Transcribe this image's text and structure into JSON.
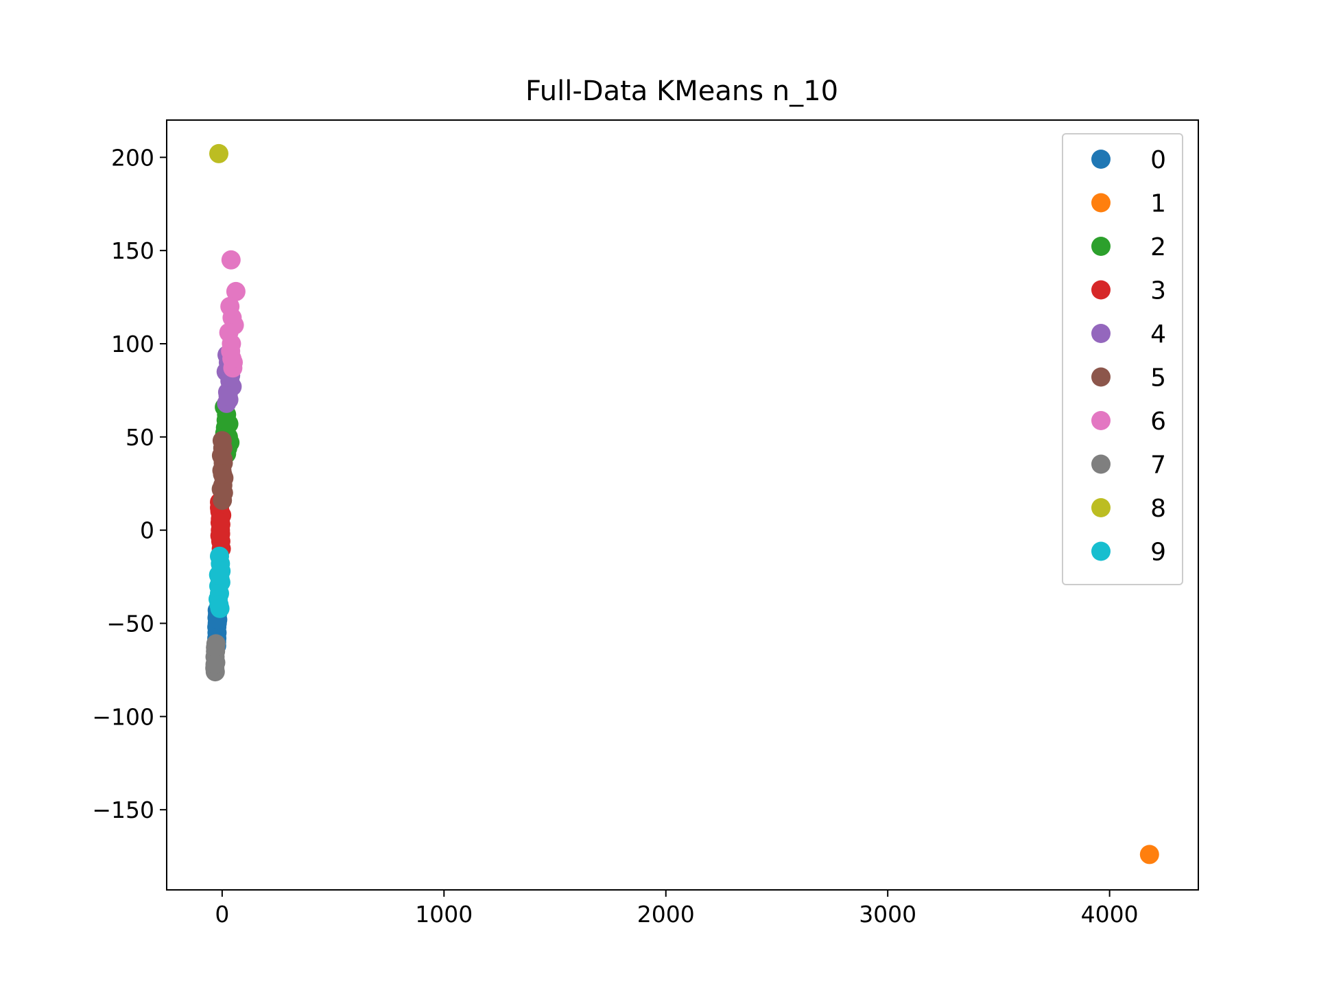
{
  "chart_data": {
    "type": "scatter",
    "title": "Full-Data KMeans n_10",
    "xlabel": "",
    "ylabel": "",
    "xlim": [
      -250,
      4400
    ],
    "ylim": [
      -193,
      220
    ],
    "xticks": [
      0,
      1000,
      2000,
      3000,
      4000
    ],
    "xtick_labels": [
      "0",
      "1000",
      "2000",
      "3000",
      "4000"
    ],
    "yticks": [
      -150,
      -100,
      -50,
      0,
      50,
      100,
      150,
      200
    ],
    "ytick_labels": [
      "−150",
      "−100",
      "−50",
      "0",
      "50",
      "100",
      "150",
      "200"
    ],
    "grid": false,
    "legend_position": "top-right",
    "series": [
      {
        "name": "0",
        "color": "#1f77b4",
        "points": [
          [
            -25,
            -62
          ],
          [
            -24,
            -58
          ],
          [
            -23,
            -55
          ],
          [
            -24,
            -52
          ],
          [
            -22,
            -50
          ],
          [
            -23,
            -47
          ],
          [
            -21,
            -45
          ],
          [
            -22,
            -43
          ],
          [
            -20,
            -48
          ],
          [
            -25,
            -60
          ]
        ]
      },
      {
        "name": "1",
        "color": "#ff7f0e",
        "points": [
          [
            4180,
            -174
          ]
        ]
      },
      {
        "name": "2",
        "color": "#2ca02c",
        "points": [
          [
            10,
            66
          ],
          [
            20,
            62
          ],
          [
            30,
            57
          ],
          [
            15,
            55
          ],
          [
            35,
            47
          ],
          [
            25,
            44
          ],
          [
            20,
            41
          ],
          [
            12,
            52
          ],
          [
            18,
            59
          ],
          [
            28,
            50
          ]
        ]
      },
      {
        "name": "3",
        "color": "#d62728",
        "points": [
          [
            -12,
            15
          ],
          [
            -10,
            10
          ],
          [
            -8,
            6
          ],
          [
            -6,
            3
          ],
          [
            -8,
            0
          ],
          [
            -10,
            -3
          ],
          [
            -6,
            -6
          ],
          [
            -4,
            -10
          ],
          [
            -12,
            12
          ],
          [
            -2,
            8
          ],
          [
            -7,
            -2
          ],
          [
            -9,
            4
          ]
        ]
      },
      {
        "name": "4",
        "color": "#9467bd",
        "points": [
          [
            22,
            94
          ],
          [
            28,
            90
          ],
          [
            18,
            85
          ],
          [
            35,
            80
          ],
          [
            45,
            77
          ],
          [
            25,
            74
          ],
          [
            30,
            70
          ],
          [
            20,
            68
          ],
          [
            38,
            83
          ],
          [
            27,
            72
          ]
        ]
      },
      {
        "name": "5",
        "color": "#8c564b",
        "points": [
          [
            0,
            48
          ],
          [
            3,
            44
          ],
          [
            -3,
            40
          ],
          [
            5,
            36
          ],
          [
            -1,
            32
          ],
          [
            8,
            28
          ],
          [
            3,
            24
          ],
          [
            6,
            20
          ],
          [
            1,
            16
          ],
          [
            -4,
            22
          ],
          [
            4,
            38
          ],
          [
            2,
            30
          ]
        ]
      },
      {
        "name": "6",
        "color": "#e377c2",
        "points": [
          [
            40,
            145
          ],
          [
            62,
            128
          ],
          [
            35,
            120
          ],
          [
            45,
            114
          ],
          [
            55,
            110
          ],
          [
            30,
            106
          ],
          [
            42,
            100
          ],
          [
            38,
            96
          ],
          [
            50,
            90
          ],
          [
            48,
            87
          ],
          [
            44,
            92
          ]
        ]
      },
      {
        "name": "7",
        "color": "#7f7f7f",
        "points": [
          [
            -28,
            -61
          ],
          [
            -30,
            -65
          ],
          [
            -32,
            -68
          ],
          [
            -29,
            -71
          ],
          [
            -33,
            -74
          ],
          [
            -31,
            -76
          ],
          [
            -30,
            -63
          ],
          [
            -32,
            -72
          ]
        ]
      },
      {
        "name": "8",
        "color": "#bcbd22",
        "points": [
          [
            -15,
            202
          ]
        ]
      },
      {
        "name": "9",
        "color": "#17becf",
        "points": [
          [
            -12,
            -14
          ],
          [
            -8,
            -18
          ],
          [
            -5,
            -22
          ],
          [
            -10,
            -26
          ],
          [
            -15,
            -30
          ],
          [
            -12,
            -34
          ],
          [
            -18,
            -37
          ],
          [
            -14,
            -40
          ],
          [
            -10,
            -42
          ],
          [
            -6,
            -28
          ],
          [
            -16,
            -24
          ]
        ]
      }
    ]
  }
}
